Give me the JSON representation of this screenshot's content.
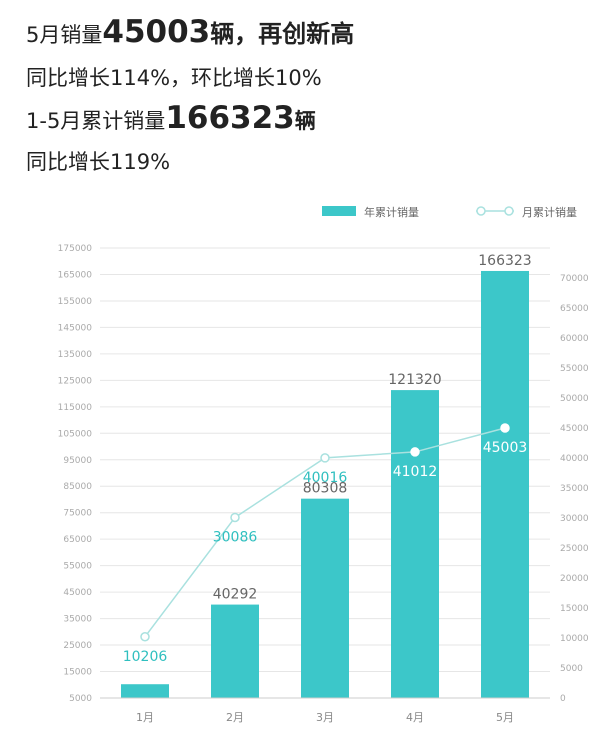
{
  "headline": {
    "line1_prefix": "5月销量",
    "line1_number": "45003",
    "line1_unit": "辆",
    "line1_suffix": "，再创新高",
    "line2": "同比增长114%，环比增长10%",
    "line3_prefix": "1-5月累计销量",
    "line3_number": "166323",
    "line3_unit": "辆",
    "line4": "同比增长119%"
  },
  "colors": {
    "bar": "#3cc7c9",
    "line": "#a9e1df",
    "label_teal": "#2fbfbf",
    "label_gray": "#666666",
    "grid": "#e6e6e6",
    "axis_text": "#aaaaaa"
  },
  "chart_data": {
    "type": "bar",
    "categories": [
      "1月",
      "2月",
      "3月",
      "4月",
      "5月"
    ],
    "series": [
      {
        "name": "年累计销量",
        "type": "bar",
        "axis": "left",
        "values": [
          10206,
          40292,
          80308,
          121320,
          166323
        ],
        "data_labels": [
          "",
          "40292",
          "80308",
          "121320",
          "166323"
        ]
      },
      {
        "name": "月累计销量",
        "type": "line",
        "axis": "right",
        "values": [
          10206,
          30086,
          40016,
          41012,
          45003
        ],
        "data_labels": [
          "10206",
          "30086",
          "40016",
          "41012",
          "45003"
        ]
      }
    ],
    "left_axis": {
      "ylim": [
        5000,
        175000
      ],
      "ticks": [
        5000,
        15000,
        25000,
        35000,
        45000,
        55000,
        65000,
        75000,
        85000,
        95000,
        105000,
        115000,
        125000,
        135000,
        145000,
        155000,
        165000,
        175000
      ]
    },
    "right_axis": {
      "ylim": [
        0,
        75000
      ],
      "ticks": [
        0,
        5000,
        10000,
        15000,
        20000,
        25000,
        30000,
        35000,
        40000,
        45000,
        50000,
        55000,
        60000,
        65000,
        70000
      ]
    },
    "grid": true,
    "legend_position": "top-right"
  }
}
